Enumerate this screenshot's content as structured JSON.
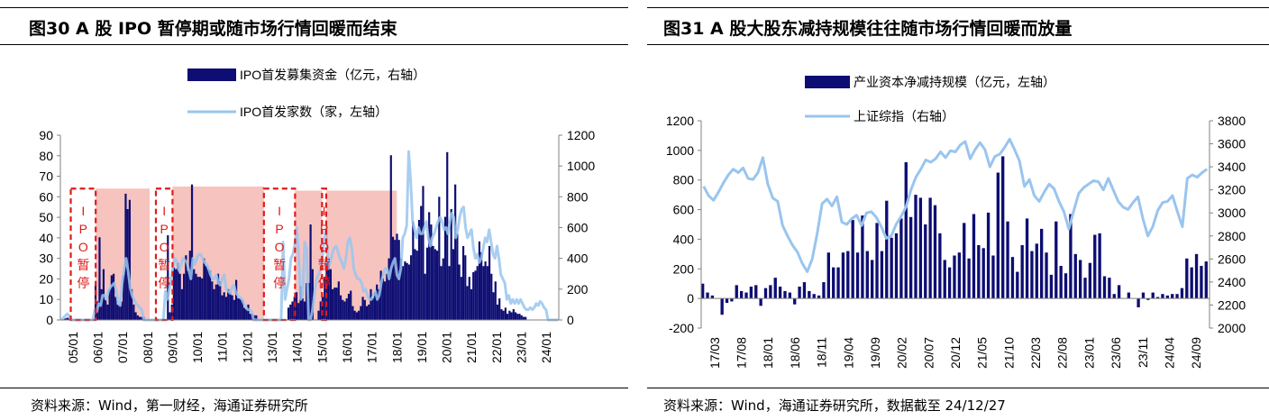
{
  "chart_data": [
    {
      "type": "bar+line",
      "title": "图30 A 股 IPO 暂停期或随市场行情回暖而结束",
      "source": "资料来源：Wind，第一财经，海通证券研究所",
      "legend": [
        "IPO首发募集资金（亿元，右轴）",
        "IPO首发家数（家，左轴）"
      ],
      "legend_position": "top-center",
      "left_axis": {
        "ylim": [
          0,
          90
        ],
        "ticks": [
          "0",
          "10",
          "20",
          "30",
          "40",
          "50",
          "60",
          "70",
          "80",
          "90"
        ]
      },
      "right_axis": {
        "ylim": [
          0,
          1200
        ],
        "ticks": [
          "0",
          "200",
          "400",
          "600",
          "800",
          "1000",
          "1200"
        ]
      },
      "x_ticks": [
        "05/01",
        "06/01",
        "07/01",
        "08/01",
        "09/01",
        "10/01",
        "11/01",
        "12/01",
        "13/01",
        "14/01",
        "15/01",
        "16/01",
        "17/01",
        "18/01",
        "19/01",
        "20/01",
        "21/01",
        "22/01",
        "23/01",
        "24/01"
      ],
      "x_range_months": [
        0,
        240
      ],
      "pause_periods": [
        {
          "label": "IPO暂停",
          "start": 5,
          "end": 17
        },
        {
          "label": "IPO暂停",
          "start": 46,
          "end": 54
        },
        {
          "label": "IPO暂停",
          "start": 98,
          "end": 113
        },
        {
          "label": "IPO暂停",
          "start": 126,
          "end": 128
        }
      ],
      "shaded_periods": [
        {
          "start": 17,
          "end": 43,
          "top": 64
        },
        {
          "start": 54,
          "end": 98,
          "top": 65
        },
        {
          "start": 113,
          "end": 126,
          "top": 63
        },
        {
          "start": 128,
          "end": 162,
          "top": 63
        }
      ],
      "series": [
        {
          "name": "IPO首发募集资金（亿元，右轴）",
          "axis": "right",
          "color": "#0d0d73",
          "values": [
            0,
            5,
            10,
            15,
            10,
            0,
            0,
            0,
            0,
            0,
            0,
            0,
            0,
            0,
            0,
            0,
            0,
            225,
            120,
            537,
            200,
            330,
            130,
            100,
            200,
            290,
            300,
            150,
            100,
            100,
            120,
            290,
            820,
            720,
            780,
            200,
            100,
            50,
            30,
            20,
            20,
            20,
            0,
            0,
            0,
            0,
            0,
            0,
            0,
            0,
            0,
            0,
            0,
            550,
            50,
            100,
            340,
            330,
            370,
            300,
            200,
            300,
            420,
            320,
            450,
            880,
            330,
            300,
            280,
            280,
            270,
            400,
            350,
            330,
            320,
            250,
            200,
            230,
            300,
            250,
            160,
            180,
            150,
            200,
            180,
            160,
            130,
            260,
            140,
            140,
            130,
            80,
            70,
            100,
            40,
            40,
            30,
            30,
            0,
            0,
            0,
            0,
            0,
            0,
            0,
            0,
            0,
            0,
            0,
            0,
            0,
            0,
            0,
            80,
            100,
            120,
            150,
            180,
            110,
            220,
            140,
            120,
            240,
            240,
            620,
            330,
            0,
            0,
            60,
            120,
            150,
            280,
            370,
            400,
            330,
            200,
            210,
            210,
            250,
            160,
            130,
            120,
            140,
            170,
            190,
            90,
            60,
            50,
            60,
            90,
            150,
            130,
            90,
            100,
            200,
            140,
            180,
            230,
            200,
            320,
            270,
            250,
            300,
            400,
            1070,
            540,
            520,
            560,
            520,
            400,
            350,
            380,
            370,
            360,
            420,
            640,
            460,
            450,
            650,
            740,
            870,
            300,
            470,
            700,
            620,
            480,
            460,
            450,
            800,
            350,
            400,
            670,
            1090,
            350,
            720,
            460,
            880,
            560,
            360,
            280,
            480,
            420,
            220,
            280,
            200,
            310,
            320,
            350,
            510,
            440,
            350,
            380,
            350,
            480,
            300,
            180,
            250,
            100,
            140,
            70,
            60,
            80,
            40,
            60,
            50,
            70,
            50,
            40,
            40,
            30,
            20,
            20,
            0,
            0,
            0,
            0,
            0,
            0,
            0,
            0,
            0,
            0,
            0,
            0,
            0,
            0,
            0,
            0
          ]
        },
        {
          "name": "IPO首发家数（家，左轴）",
          "axis": "left",
          "color": "#99c5ee",
          "values": [
            0,
            1,
            2,
            3,
            2,
            0,
            0,
            0,
            0,
            0,
            0,
            0,
            0,
            0,
            0,
            0,
            0,
            5,
            4,
            8,
            7,
            12,
            12,
            10,
            14,
            16,
            17,
            18,
            14,
            8,
            7,
            18,
            25,
            30,
            24,
            16,
            12,
            10,
            8,
            7,
            6,
            5,
            0,
            0,
            0,
            0,
            0,
            0,
            0,
            0,
            0,
            0,
            0,
            14,
            10,
            15,
            20,
            27,
            30,
            28,
            24,
            27,
            30,
            29,
            28,
            24,
            20,
            30,
            27,
            30,
            32,
            32,
            30,
            28,
            27,
            25,
            22,
            20,
            20,
            22,
            18,
            17,
            20,
            22,
            15,
            14,
            13,
            16,
            17,
            13,
            12,
            11,
            10,
            8,
            6,
            5,
            5,
            4,
            0,
            0,
            0,
            0,
            0,
            0,
            0,
            0,
            0,
            0,
            0,
            0,
            0,
            0,
            0,
            38,
            10,
            15,
            20,
            30,
            32,
            37,
            45,
            30,
            10,
            12,
            38,
            35,
            0,
            0,
            5,
            13,
            20,
            22,
            25,
            30,
            40,
            45,
            25,
            28,
            32,
            35,
            36,
            33,
            30,
            28,
            25,
            30,
            38,
            40,
            35,
            25,
            22,
            20,
            20,
            18,
            14,
            15,
            12,
            10,
            10,
            12,
            14,
            10,
            12,
            18,
            22,
            25,
            25,
            20,
            25,
            28,
            30,
            22,
            20,
            25,
            40,
            42,
            46,
            82,
            68,
            48,
            44,
            40,
            45,
            42,
            42,
            45,
            48,
            40,
            36,
            40,
            42,
            45,
            48,
            50,
            48,
            44,
            45,
            42,
            48,
            52,
            50,
            40,
            44,
            50,
            54,
            55,
            45,
            40,
            42,
            44,
            35,
            30,
            32,
            28,
            30,
            35,
            40,
            38,
            44,
            38,
            32,
            30,
            36,
            30,
            22,
            20,
            18,
            10,
            12,
            8,
            10,
            8,
            10,
            8,
            10,
            8,
            6,
            5,
            5,
            6,
            5,
            6,
            8,
            7,
            9,
            8,
            6,
            5,
            0,
            0,
            0,
            0,
            0,
            0
          ]
        }
      ]
    },
    {
      "type": "bar+line",
      "title": "图31 A 股大股东减持规模往往随市场行情回暖而放量",
      "source": "资料来源：Wind，海通证券研究所，数据截至 24/12/27",
      "legend": [
        "产业资本净减持规模（亿元，左轴）",
        "上证综指（右轴）"
      ],
      "legend_position": "top-center",
      "left_axis": {
        "ylim": [
          -200,
          1200
        ],
        "ticks": [
          "-200",
          "0",
          "200",
          "400",
          "600",
          "800",
          "1000",
          "1200"
        ]
      },
      "right_axis": {
        "ylim": [
          2000,
          3800
        ],
        "ticks": [
          "2000",
          "2200",
          "2400",
          "2600",
          "2800",
          "3000",
          "3200",
          "3400",
          "3600",
          "3800"
        ]
      },
      "x_ticks": [
        "17/03",
        "17/08",
        "18/01",
        "18/06",
        "18/11",
        "19/04",
        "19/09",
        "20/02",
        "20/07",
        "20/12",
        "21/05",
        "21/10",
        "22/03",
        "22/08",
        "23/01",
        "23/06",
        "23/11",
        "24/04",
        "24/09"
      ],
      "x_range_months": [
        0,
        95
      ],
      "series": [
        {
          "name": "产业资本净减持规模（亿元，左轴）",
          "axis": "left",
          "color": "#0d0d73",
          "values": [
            100,
            40,
            20,
            0,
            -110,
            -30,
            -20,
            90,
            50,
            40,
            80,
            90,
            -50,
            70,
            90,
            140,
            80,
            50,
            40,
            -40,
            80,
            110,
            50,
            30,
            20,
            110,
            310,
            210,
            210,
            310,
            320,
            530,
            310,
            560,
            320,
            260,
            510,
            320,
            660,
            410,
            440,
            540,
            920,
            550,
            700,
            680,
            500,
            680,
            630,
            440,
            260,
            210,
            290,
            310,
            510,
            270,
            570,
            360,
            340,
            580,
            290,
            850,
            960,
            520,
            280,
            180,
            360,
            540,
            320,
            370,
            470,
            310,
            160,
            520,
            220,
            170,
            570,
            300,
            260,
            140,
            240,
            430,
            440,
            150,
            140,
            30,
            90,
            0,
            40,
            0,
            -60,
            40,
            -10,
            40,
            10,
            30,
            20,
            30,
            30,
            70,
            270,
            210,
            300,
            220,
            250
          ]
        },
        {
          "name": "上证综指（右轴）",
          "axis": "right",
          "color": "#99c5ee",
          "values": [
            3230,
            3150,
            3110,
            3180,
            3260,
            3330,
            3380,
            3350,
            3390,
            3300,
            3290,
            3350,
            3480,
            3250,
            3130,
            3100,
            2890,
            2800,
            2720,
            2660,
            2560,
            2490,
            2600,
            2820,
            3080,
            3120,
            3060,
            3140,
            2920,
            2900,
            2950,
            2980,
            2890,
            3000,
            3010,
            2960,
            2880,
            2780,
            2800,
            2900,
            2970,
            3050,
            3200,
            3310,
            3380,
            3460,
            3440,
            3470,
            3530,
            3480,
            3540,
            3530,
            3590,
            3620,
            3470,
            3550,
            3610,
            3550,
            3400,
            3490,
            3510,
            3570,
            3640,
            3550,
            3450,
            3230,
            3290,
            3150,
            3100,
            3180,
            3250,
            3210,
            3100,
            3010,
            2860,
            3020,
            3170,
            3220,
            3250,
            3280,
            3270,
            3200,
            3300,
            3200,
            3100,
            3050,
            3030,
            3090,
            3140,
            2950,
            2800,
            2880,
            3020,
            3090,
            3100,
            3150,
            3010,
            2880,
            3300,
            3330,
            3310,
            3350,
            3380
          ]
        }
      ]
    }
  ]
}
